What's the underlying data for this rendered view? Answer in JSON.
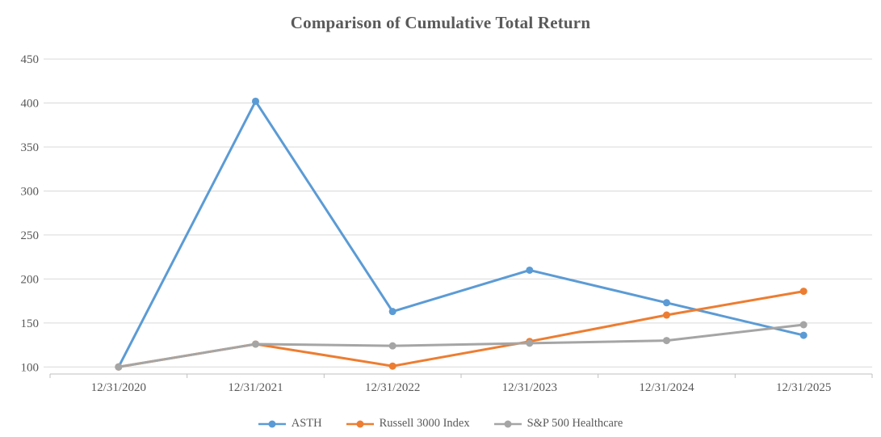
{
  "chart_data": {
    "type": "line",
    "title": "Comparison of Cumulative Total Return",
    "categories": [
      "12/31/2020",
      "12/31/2021",
      "12/31/2022",
      "12/31/2023",
      "12/31/2024",
      "12/31/2025"
    ],
    "series": [
      {
        "name": "ASTH",
        "color": "#5B9BD5",
        "values": [
          100,
          402,
          163,
          210,
          173,
          136
        ]
      },
      {
        "name": "Russell 3000 Index",
        "color": "#ED7D31",
        "values": [
          100,
          126,
          101,
          129,
          159,
          186
        ]
      },
      {
        "name": "S&P 500 Healthcare",
        "color": "#A5A5A5",
        "values": [
          100,
          126,
          124,
          127,
          130,
          148
        ]
      }
    ],
    "yticks": [
      100,
      150,
      200,
      250,
      300,
      350,
      400,
      450
    ],
    "ylim": [
      92,
      462
    ],
    "xlabel": "",
    "ylabel": "",
    "grid": true,
    "grid_color": "#D9D9D9",
    "axis_color": "#BFBFBF",
    "text_color": "#595959",
    "legend_position": "bottom"
  }
}
